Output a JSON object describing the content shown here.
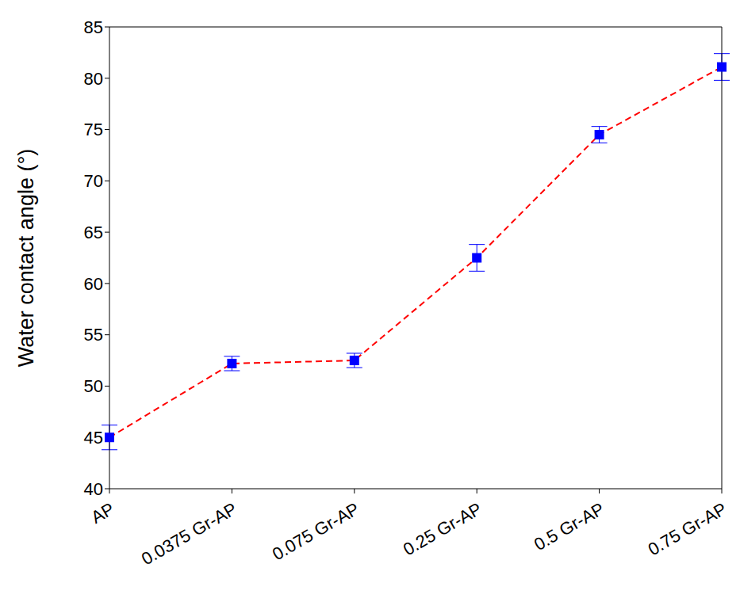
{
  "chart_data": {
    "type": "line",
    "y_label": "Water contact angle (°)",
    "categories": [
      "AP",
      "0.0375 Gr-AP",
      "0.075 Gr-AP",
      "0.25 Gr-AP",
      "0.5 Gr-AP",
      "0.75 Gr-AP"
    ],
    "series": [
      {
        "type": "line",
        "color": "#ff0000",
        "line_style": "dashed",
        "values": [
          45,
          52.2,
          52.5,
          62.5,
          74.5,
          81.1
        ]
      },
      {
        "type": "scatter",
        "color": "#0000ff",
        "marker": "square",
        "values": [
          45,
          52.2,
          52.5,
          62.5,
          74.5,
          81.1
        ],
        "error": [
          1.2,
          0.7,
          0.7,
          1.3,
          0.8,
          1.3
        ]
      }
    ],
    "ylim": [
      40,
      85
    ],
    "yticks": [
      40,
      45,
      50,
      55,
      60,
      65,
      70,
      75,
      80,
      85
    ],
    "grid": false
  }
}
